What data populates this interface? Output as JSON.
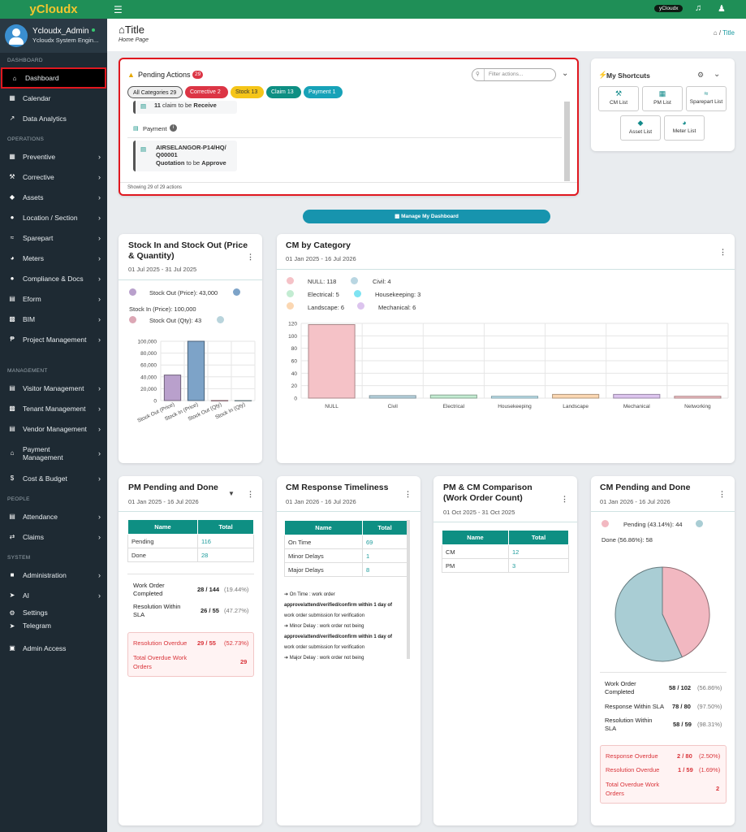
{
  "app": {
    "brand": "yCloudx",
    "top_badge": "yCloudx",
    "icons": {
      "menu": "hamburger-icon",
      "notifications": "bell-icon",
      "profile": "user-icon"
    }
  },
  "user": {
    "name": "Ycloudx_Admin",
    "role": "Ycloudx System Engin..."
  },
  "sidebar": {
    "sections": {
      "dashboard": "DASHBOARD",
      "operations": "OPERATIONS",
      "management": "MANAGEMENT",
      "people": "PEOPLE",
      "system": "SYSTEM"
    },
    "items": [
      {
        "label": "Dashboard"
      },
      {
        "label": "Calendar"
      },
      {
        "label": "Data Analytics"
      },
      {
        "label": "Preventive"
      },
      {
        "label": "Corrective"
      },
      {
        "label": "Assets"
      },
      {
        "label": "Location / Section"
      },
      {
        "label": "Sparepart"
      },
      {
        "label": "Meters"
      },
      {
        "label": "Compliance & Docs"
      },
      {
        "label": "Eform"
      },
      {
        "label": "BIM"
      },
      {
        "label": "Project Management"
      },
      {
        "label": "Visitor Management"
      },
      {
        "label": "Tenant Management"
      },
      {
        "label": "Vendor Management"
      },
      {
        "label": "Payment Management"
      },
      {
        "label": "Cost & Budget"
      },
      {
        "label": "Attendance"
      },
      {
        "label": "Claims"
      },
      {
        "label": "Administration"
      },
      {
        "label": "AI"
      },
      {
        "label": "Settings"
      },
      {
        "label": "Telegram"
      },
      {
        "label": "Admin Access"
      }
    ]
  },
  "header": {
    "title": "Title",
    "subtitle": "Home Page",
    "breadcrumb_sep": "/",
    "breadcrumb_current": "Title"
  },
  "pending": {
    "title": "Pending Actions",
    "badge": "29",
    "filter_placeholder": "Filter actions...",
    "pills": [
      {
        "label": "All Categories 29"
      },
      {
        "label": "Corrective 2"
      },
      {
        "label": "Stock 13"
      },
      {
        "label": "Claim 13"
      },
      {
        "label": "Payment 1"
      }
    ],
    "claim_count": "11",
    "claim_text": "claim to be",
    "claim_action": "Receive",
    "payment_group": "Payment",
    "payment_ref": "AIRSELANGOR-P14/HQ/Q00001",
    "payment_kind": "Quotation",
    "payment_text": "to be",
    "payment_action": "Approve",
    "footer": "Showing 29 of 29 actions"
  },
  "shortcuts": {
    "title": "My Shortcuts",
    "items": [
      {
        "label": "CM List"
      },
      {
        "label": "PM List"
      },
      {
        "label": "Sparepart List"
      },
      {
        "label": "Asset List"
      },
      {
        "label": "Meter List"
      }
    ]
  },
  "manage_button": "Manage My Dashboard",
  "stock": {
    "title": "Stock In and Stock Out (Price & Quantity)",
    "date": "01 Jul 2025 - 31 Jul 2025",
    "legend": [
      "Stock Out (Price): 43,000",
      "Stock In (Price): 100,000",
      "Stock Out (Qty): 43"
    ]
  },
  "cm_category": {
    "title": "CM by Category",
    "date": "01 Jan 2025 - 16 Jul 2026",
    "legend": [
      "NULL: 118",
      "Civil: 4",
      "Electrical: 5",
      "Housekeeping: 3",
      "Landscape: 6",
      "Mechanical: 6"
    ]
  },
  "pm": {
    "title": "PM Pending and Done",
    "date": "01 Jan 2025 - 16 Jul 2026",
    "col_name": "Name",
    "col_total": "Total",
    "rows": [
      {
        "name": "Pending",
        "total": "116"
      },
      {
        "name": "Done",
        "total": "28"
      }
    ],
    "wo_label": "Work Order Completed",
    "wo_val": "28 / 144",
    "wo_pct": "(19.44%)",
    "res_label": "Resolution Within SLA",
    "res_val": "26 / 55",
    "res_pct": "(47.27%)",
    "overdue_label": "Resolution Overdue",
    "overdue_val": "29 / 55",
    "overdue_pct": "(52.73%)",
    "total_overdue_label": "Total Overdue Work Orders",
    "total_overdue_val": "29"
  },
  "cm_resp": {
    "title": "CM Response Timeliness",
    "date": "01 Jan 2026 - 16 Jul 2026",
    "col_name": "Name",
    "col_total": "Total",
    "rows": [
      {
        "name": "On Time",
        "total": "69"
      },
      {
        "name": "Minor Delays",
        "total": "1"
      },
      {
        "name": "Major Delays",
        "total": "8"
      }
    ],
    "note1": "On Time : work order",
    "note2": "approve/attend/verified/confirm within 1 day of",
    "note3": "work order submission for verification",
    "note4": "Minor Delay : work order not being",
    "note5": "approve/attend/verified/confirm within 1 day of",
    "note6": "work order submission for verification",
    "note7": "Major Delay : work order not being"
  },
  "pmcm": {
    "title": "PM & CM Comparison (Work Order Count)",
    "date": "01 Oct 2025 - 31 Oct 2025",
    "col_name": "Name",
    "col_total": "Total",
    "rows": [
      {
        "name": "CM",
        "total": "12"
      },
      {
        "name": "PM",
        "total": "3"
      }
    ]
  },
  "cm_pd": {
    "title": "CM Pending and Done",
    "date": "01 Jan 2026 - 16 Jul 2026",
    "legend": [
      "Pending (43.14%): 44",
      "Done (56.86%): 58"
    ],
    "wo_label": "Work Order Completed",
    "wo_val": "58 / 102",
    "wo_pct": "(56.86%)",
    "resp_label": "Response Within SLA",
    "resp_val": "78 / 80",
    "resp_pct": "(97.50%)",
    "res_label": "Resolution Within SLA",
    "res_val": "58 / 59",
    "res_pct": "(98.31%)",
    "resp_over_label": "Response Overdue",
    "resp_over_val": "2 / 80",
    "resp_over_pct": "(2.50%)",
    "res_over_label": "Resolution Overdue",
    "res_over_val": "1 / 59",
    "res_over_pct": "(1.69%)",
    "total_overdue_label": "Total Overdue Work Orders",
    "total_overdue_val": "2"
  },
  "chart_data": [
    {
      "type": "bar",
      "title": "Stock In and Stock Out (Price & Quantity)",
      "categories": [
        "Stock Out (Price)",
        "Stock In (Price)",
        "Stock Out (Qty)",
        "Stock In (Qty)"
      ],
      "values": [
        43000,
        100000,
        43,
        0
      ],
      "ylim": [
        0,
        100000
      ],
      "yticks": [
        "100,000",
        "80,000",
        "60,000",
        "40,000",
        "20,000",
        "0"
      ],
      "colors": [
        "#b9a0cc",
        "#7da3c8",
        "#dca7b5",
        "#b9d4dc"
      ]
    },
    {
      "type": "bar",
      "title": "CM by Category",
      "categories": [
        "NULL",
        "Civil",
        "Electrical",
        "Housekeeping",
        "Landscape",
        "Mechanical",
        "Networking"
      ],
      "values": [
        118,
        4,
        5,
        3,
        6,
        6,
        3
      ],
      "ylim": [
        0,
        120
      ],
      "yticks": [
        "120",
        "100",
        "80",
        "60",
        "40",
        "20",
        "0"
      ],
      "colors": [
        "#f5c2c7",
        "#b9d6e2",
        "#c3ecd2",
        "#bfe6f2",
        "#fbd7b2",
        "#dcc4ee",
        "#f5c2c7"
      ]
    },
    {
      "type": "pie",
      "title": "CM Pending and Done",
      "categories": [
        "Pending",
        "Done"
      ],
      "values": [
        44,
        58
      ],
      "colors": [
        "#f2b8c1",
        "#a9cdd4"
      ]
    }
  ]
}
